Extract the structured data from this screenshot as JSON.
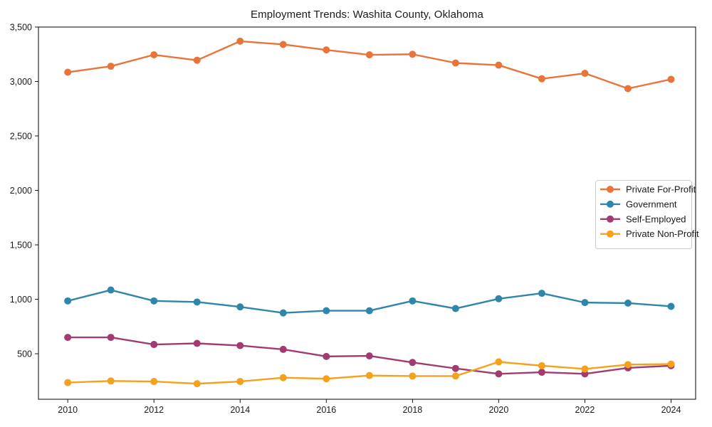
{
  "figure": {
    "title": "Employment Trends: Washita County, Oklahoma"
  },
  "chart_data": {
    "type": "line",
    "title": "Employment Trends: Washita County, Oklahoma",
    "xlabel": "",
    "ylabel": "",
    "x": [
      2010,
      2011,
      2012,
      2013,
      2014,
      2015,
      2016,
      2017,
      2018,
      2019,
      2020,
      2021,
      2022,
      2023,
      2024
    ],
    "series": [
      {
        "name": "Private For-Profit",
        "color": "#E8743B",
        "values": [
          3085,
          3140,
          3245,
          3195,
          3370,
          3340,
          3290,
          3245,
          3250,
          3170,
          3150,
          3025,
          3075,
          2935,
          3020
        ]
      },
      {
        "name": "Government",
        "color": "#2E86AB",
        "values": [
          985,
          1085,
          985,
          975,
          930,
          875,
          895,
          895,
          985,
          915,
          1005,
          1055,
          970,
          965,
          935
        ]
      },
      {
        "name": "Self-Employed",
        "color": "#A23B72",
        "values": [
          650,
          650,
          585,
          595,
          575,
          540,
          475,
          480,
          420,
          365,
          315,
          330,
          315,
          370,
          390
        ]
      },
      {
        "name": "Private Non-Profit",
        "color": "#F5A11B",
        "values": [
          235,
          250,
          245,
          225,
          245,
          280,
          270,
          300,
          295,
          295,
          425,
          390,
          360,
          400,
          405
        ]
      }
    ],
    "xticks": [
      2010,
      2012,
      2014,
      2016,
      2018,
      2020,
      2022,
      2024
    ],
    "yticks": [
      500,
      1000,
      1500,
      2000,
      2500,
      3000,
      3500
    ],
    "xlim": [
      2009.32,
      2024.57
    ],
    "ylim": [
      82,
      3500
    ],
    "grid": false,
    "legend_position": "right-center",
    "legend_entries": [
      "Private For-Profit",
      "Government",
      "Self-Employed",
      "Private Non-Profit"
    ]
  }
}
